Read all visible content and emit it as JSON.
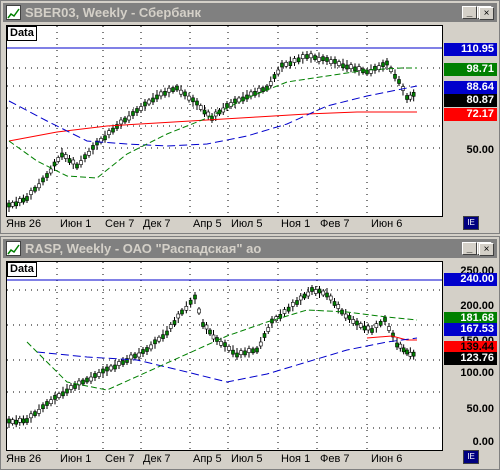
{
  "windows": [
    {
      "title": "SBER03, Weekly - Сбербанк",
      "data_label": "Data",
      "x_ticks": [
        "Янв 26",
        "Июн 1",
        "Сен 7",
        "Дек 7",
        "Апр 5",
        "Июл 5",
        "Ноя 1",
        "Фев 7",
        "Июн 6"
      ],
      "y_ticks": [
        "50.00"
      ],
      "badges": [
        {
          "value": "110.95",
          "color": "#0000cc",
          "text_color": "#ffffff"
        },
        {
          "value": "98.71",
          "color": "#008000",
          "text_color": "#ffffff"
        },
        {
          "value": "88.64",
          "color": "#0000cc",
          "text_color": "#ffffff"
        },
        {
          "value": "80.87",
          "color": "#000000",
          "text_color": "#ffffff"
        },
        {
          "value": "72.17",
          "color": "#ff0000",
          "text_color": "#ffffff"
        }
      ]
    },
    {
      "title": "RASP, Weekly - ОАО \"Распадская\" ао",
      "data_label": "Data",
      "x_ticks": [
        "Янв 26",
        "Июн 1",
        "Сен 7",
        "Дек 7",
        "Апр 5",
        "Июл 5",
        "Ноя 1",
        "Фев 7",
        "Июн 6"
      ],
      "y_ticks": [
        "250.00",
        "200.00",
        "150.00",
        "100.00",
        "50.00",
        "0.00"
      ],
      "badges": [
        {
          "value": "240.00",
          "color": "#0000cc",
          "text_color": "#ffffff"
        },
        {
          "value": "181.68",
          "color": "#008000",
          "text_color": "#ffffff"
        },
        {
          "value": "167.53",
          "color": "#0000cc",
          "text_color": "#ffffff"
        },
        {
          "value": "139.44",
          "color": "#ff0000",
          "text_color": "#000000"
        },
        {
          "value": "123.76",
          "color": "#000000",
          "text_color": "#ffffff"
        }
      ]
    }
  ],
  "title_buttons": {
    "minimize": "_",
    "maximize": "□",
    "close": "×"
  },
  "corner_icon_text": "IE"
}
